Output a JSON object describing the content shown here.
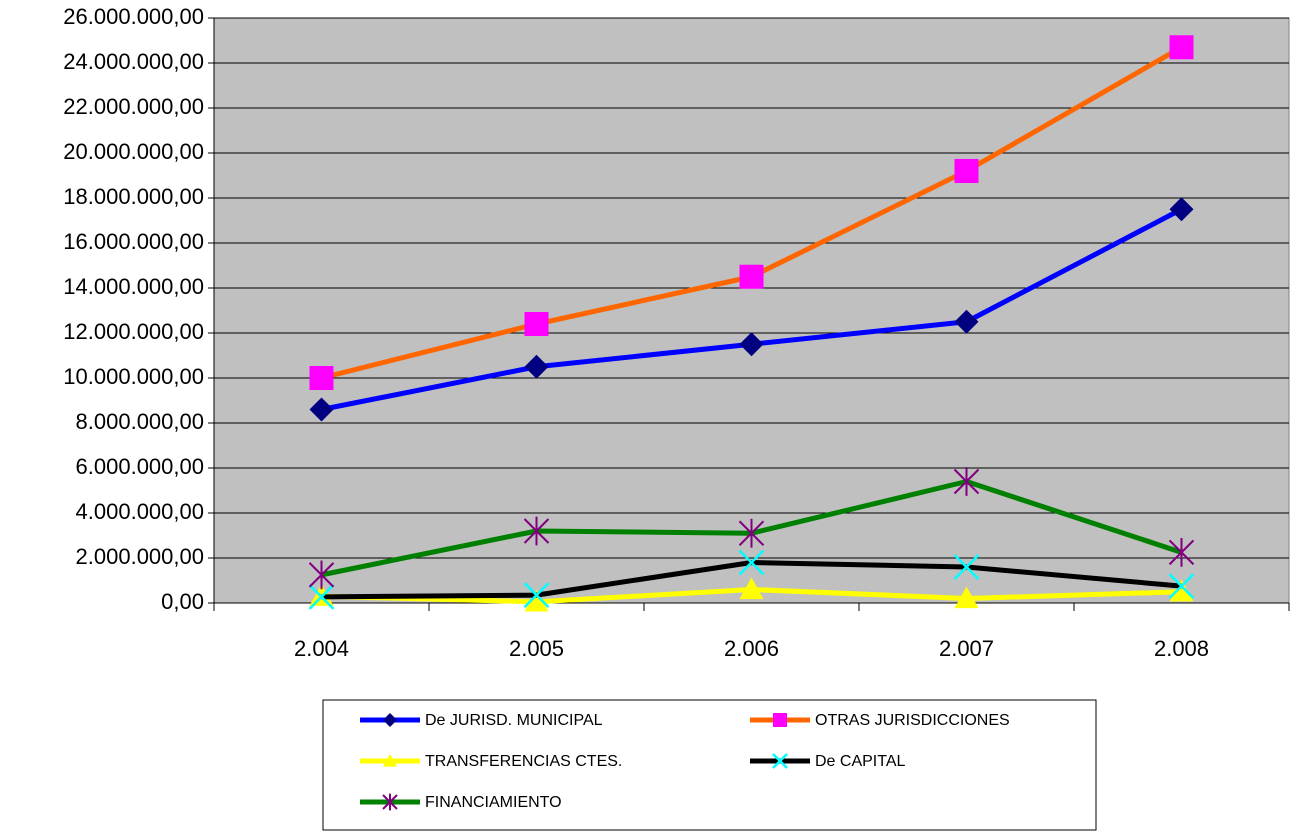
{
  "chart_data": {
    "type": "line",
    "categories": [
      "2.004",
      "2.005",
      "2.006",
      "2.007",
      "2.008"
    ],
    "series": [
      {
        "name": "De JURISD. MUNICIPAL",
        "color": "#0000ff",
        "marker": "diamond",
        "marker_color": "#000080",
        "values": [
          8600000,
          10500000,
          11500000,
          12500000,
          17500000
        ]
      },
      {
        "name": "OTRAS JURISDICCIONES",
        "color": "#ff6600",
        "marker": "square",
        "marker_color": "#ff00ff",
        "values": [
          10000000,
          12400000,
          14500000,
          19200000,
          24700000
        ]
      },
      {
        "name": "TRANSFERENCIAS CTES.",
        "color": "#ffff00",
        "marker": "triangle",
        "marker_color": "#ffff00",
        "values": [
          300000,
          50000,
          600000,
          200000,
          500000
        ]
      },
      {
        "name": "De CAPITAL",
        "color": "#000000",
        "marker": "x",
        "marker_color": "#00ffff",
        "values": [
          270000,
          350000,
          1800000,
          1600000,
          750000
        ]
      },
      {
        "name": "FINANCIAMIENTO",
        "color": "#008000",
        "marker": "asterisk",
        "marker_color": "#800080",
        "values": [
          1250000,
          3200000,
          3100000,
          5400000,
          2250000
        ]
      }
    ],
    "ylim": [
      0,
      26000000
    ],
    "yticks": [
      {
        "value": 0,
        "label": "0,00"
      },
      {
        "value": 2000000,
        "label": "2.000.000,00"
      },
      {
        "value": 4000000,
        "label": "4.000.000,00"
      },
      {
        "value": 6000000,
        "label": "6.000.000,00"
      },
      {
        "value": 8000000,
        "label": "8.000.000,00"
      },
      {
        "value": 10000000,
        "label": "10.000.000,00"
      },
      {
        "value": 12000000,
        "label": "12.000.000,00"
      },
      {
        "value": 14000000,
        "label": "14.000.000,00"
      },
      {
        "value": 16000000,
        "label": "16.000.000,00"
      },
      {
        "value": 18000000,
        "label": "18.000.000,00"
      },
      {
        "value": 20000000,
        "label": "20.000.000,00"
      },
      {
        "value": 22000000,
        "label": "22.000.000,00"
      },
      {
        "value": 24000000,
        "label": "24.000.000,00"
      },
      {
        "value": 26000000,
        "label": "26.000.000,00"
      }
    ],
    "grid": true,
    "plot_background": "#c0c0c0",
    "legend": "bottom"
  }
}
